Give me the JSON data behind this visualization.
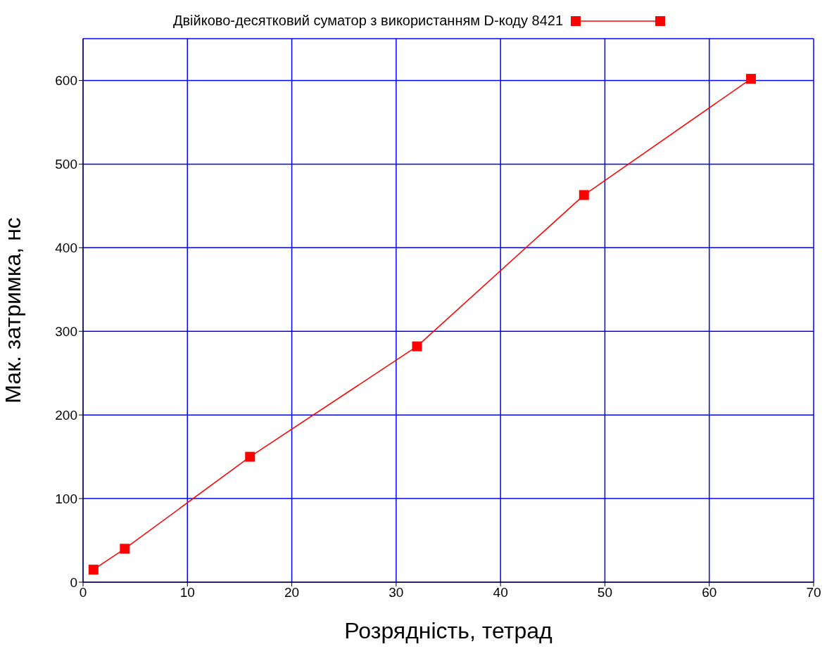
{
  "chart_data": {
    "type": "line",
    "xlabel": "Розрядність, тетрад",
    "ylabel": "Мак. затримка, нс",
    "x": [
      1,
      4,
      16,
      32,
      48,
      64
    ],
    "series": [
      {
        "name": "Двійково-десятковий суматор з використанням D-коду 8421",
        "color": "#ff0000",
        "values": [
          15,
          40,
          150,
          282,
          463,
          602
        ]
      }
    ],
    "xlim": [
      0,
      70
    ],
    "xticks": [
      0,
      10,
      20,
      30,
      40,
      50,
      60,
      70
    ],
    "ylim": [
      0,
      650
    ],
    "yticks": [
      0,
      100,
      200,
      300,
      400,
      500,
      600
    ],
    "grid": true,
    "legend": "top",
    "marker": "square",
    "line_style": "solid"
  }
}
